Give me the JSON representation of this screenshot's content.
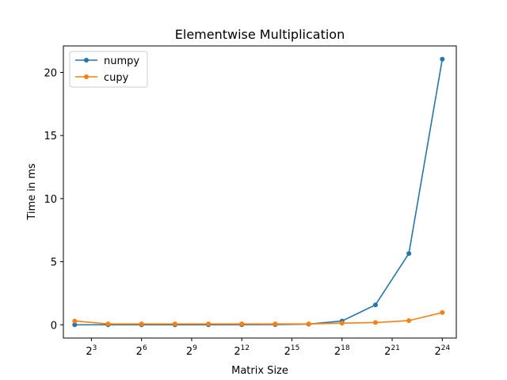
{
  "chart_data": {
    "type": "line",
    "title": "Elementwise Multiplication",
    "xlabel": "Matrix Size",
    "ylabel": "Time in ms",
    "x_scale": "log2",
    "x": [
      4,
      16,
      64,
      256,
      1024,
      4096,
      16384,
      65536,
      262144,
      1048576,
      4194304,
      16777216
    ],
    "xlim": [
      2.5,
      30000000
    ],
    "ylim": [
      -1.05,
      22.1
    ],
    "x_ticks": [
      {
        "value": 8,
        "base": "2",
        "exp": "3"
      },
      {
        "value": 64,
        "base": "2",
        "exp": "6"
      },
      {
        "value": 512,
        "base": "2",
        "exp": "9"
      },
      {
        "value": 4096,
        "base": "2",
        "exp": "12"
      },
      {
        "value": 32768,
        "base": "2",
        "exp": "15"
      },
      {
        "value": 262144,
        "base": "2",
        "exp": "18"
      },
      {
        "value": 2097152,
        "base": "2",
        "exp": "21"
      },
      {
        "value": 16777216,
        "base": "2",
        "exp": "24"
      }
    ],
    "y_ticks": [
      {
        "value": 0,
        "label": "0"
      },
      {
        "value": 5,
        "label": "5"
      },
      {
        "value": 10,
        "label": "10"
      },
      {
        "value": 15,
        "label": "15"
      },
      {
        "value": 20,
        "label": "20"
      }
    ],
    "series": [
      {
        "name": "numpy",
        "color": "#1f77b4",
        "values": [
          0.0,
          0.0,
          0.0,
          0.0,
          0.0,
          0.01,
          0.02,
          0.05,
          0.3,
          1.58,
          5.65,
          21.05
        ]
      },
      {
        "name": "cupy",
        "color": "#ff7f0e",
        "values": [
          0.3,
          0.07,
          0.07,
          0.07,
          0.07,
          0.07,
          0.07,
          0.07,
          0.13,
          0.18,
          0.33,
          0.97
        ]
      }
    ],
    "legend": "upper-left",
    "grid": false
  }
}
